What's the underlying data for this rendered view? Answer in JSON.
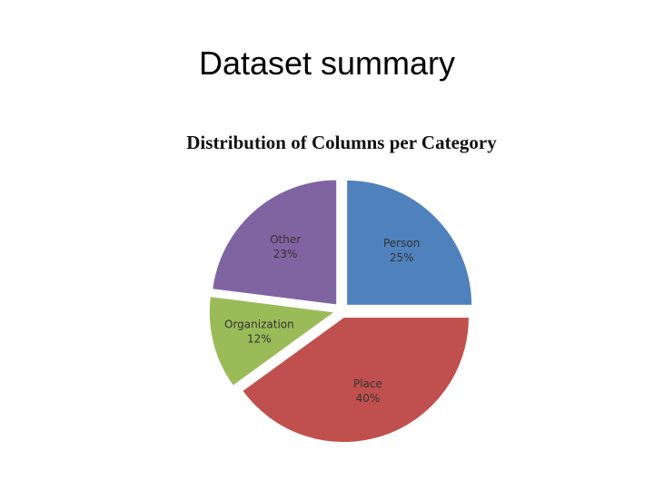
{
  "title": "Dataset summary",
  "chart_data": {
    "type": "pie",
    "title": "Distribution of Columns per Category",
    "categories": [
      "Person",
      "Place",
      "Organization",
      "Other"
    ],
    "values": [
      25,
      40,
      12,
      23
    ],
    "value_labels": [
      "25%",
      "40%",
      "12%",
      "23%"
    ],
    "colors": [
      "#4f81bd",
      "#c0504d",
      "#9bbb59",
      "#8064a2"
    ]
  }
}
